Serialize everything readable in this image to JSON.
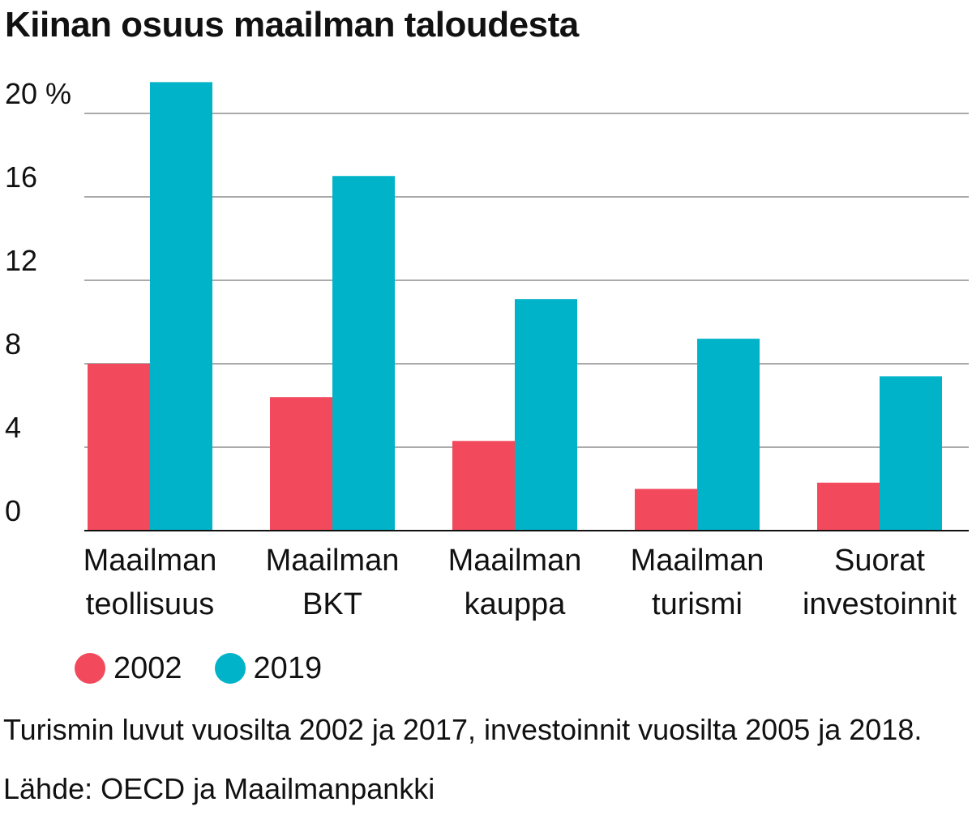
{
  "chart_data": {
    "type": "bar",
    "title": "Kiinan osuus maailman taloudesta",
    "categories": [
      [
        "Maailman",
        "teollisuus"
      ],
      [
        "Maailman",
        "BKT"
      ],
      [
        "Maailman",
        "kauppa"
      ],
      [
        "Maailman",
        "turismi"
      ],
      [
        "Suorat",
        "investoinnit"
      ]
    ],
    "series": [
      {
        "name": "2002",
        "color": "#f24a5c",
        "values": [
          8.0,
          6.4,
          4.3,
          2.0,
          2.3
        ]
      },
      {
        "name": "2019",
        "color": "#00b3c8",
        "values": [
          21.5,
          17.0,
          11.1,
          9.2,
          7.4
        ]
      }
    ],
    "yticks": [
      "0",
      "4",
      "8",
      "12",
      "16",
      "20 %"
    ],
    "ylim": [
      0,
      22
    ],
    "xlabel": "",
    "ylabel": "%",
    "grid": true,
    "legend_position": "bottom-left"
  },
  "note": "Turismin luvut vuosilta 2002 ja 2017, investoinnit vuosilta 2005 ja 2018.",
  "source": "Lähde: OECD ja Maailmanpankki"
}
